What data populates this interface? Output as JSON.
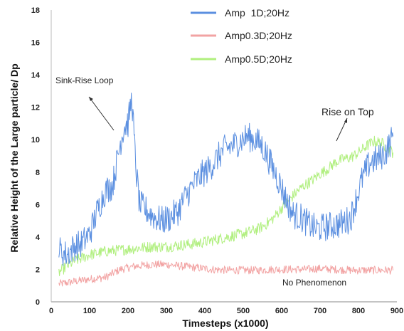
{
  "chart_data": {
    "type": "line",
    "xlabel": "Timesteps (x1000)",
    "ylabel": "Relative Height of the Large particle/ Dp",
    "xlim": [
      0,
      900
    ],
    "ylim": [
      0,
      18
    ],
    "x_ticks": [
      "0",
      "100",
      "200",
      "300",
      "400",
      "500",
      "600",
      "700",
      "800",
      "900"
    ],
    "y_ticks": [
      "0",
      "2",
      "4",
      "6",
      "8",
      "10",
      "12",
      "14",
      "16",
      "18"
    ],
    "grid": false,
    "legend_position": "top-right",
    "series": [
      {
        "name": "Amp  1D;20Hz",
        "color": "#5b8fe0",
        "noise": 0.9,
        "points": [
          [
            20,
            3.2
          ],
          [
            40,
            2.9
          ],
          [
            60,
            3.4
          ],
          [
            80,
            3.6
          ],
          [
            100,
            4.2
          ],
          [
            120,
            5.6
          ],
          [
            140,
            6.8
          ],
          [
            160,
            7.2
          ],
          [
            170,
            8.5
          ],
          [
            180,
            9.8
          ],
          [
            190,
            10.8
          ],
          [
            200,
            11.0
          ],
          [
            210,
            12.6
          ],
          [
            220,
            8.4
          ],
          [
            230,
            6.0
          ],
          [
            250,
            5.6
          ],
          [
            270,
            5.2
          ],
          [
            290,
            5.0
          ],
          [
            310,
            5.2
          ],
          [
            330,
            5.6
          ],
          [
            350,
            6.5
          ],
          [
            370,
            7.2
          ],
          [
            390,
            7.8
          ],
          [
            410,
            8.2
          ],
          [
            430,
            8.8
          ],
          [
            450,
            9.4
          ],
          [
            470,
            9.6
          ],
          [
            490,
            9.9
          ],
          [
            510,
            10.2
          ],
          [
            530,
            10.0
          ],
          [
            550,
            9.6
          ],
          [
            570,
            8.6
          ],
          [
            590,
            7.6
          ],
          [
            610,
            6.4
          ],
          [
            630,
            5.4
          ],
          [
            650,
            5.2
          ],
          [
            670,
            4.8
          ],
          [
            690,
            4.5
          ],
          [
            710,
            4.6
          ],
          [
            730,
            4.7
          ],
          [
            750,
            4.8
          ],
          [
            770,
            5.0
          ],
          [
            780,
            5.2
          ],
          [
            790,
            6.0
          ],
          [
            810,
            7.6
          ],
          [
            830,
            8.6
          ],
          [
            850,
            8.8
          ],
          [
            870,
            9.2
          ],
          [
            890,
            10.2
          ]
        ]
      },
      {
        "name": "Amp0.3D;20Hz",
        "color": "#f2a3a3",
        "noise": 0.25,
        "points": [
          [
            20,
            1.1
          ],
          [
            60,
            1.25
          ],
          [
            100,
            1.4
          ],
          [
            140,
            1.5
          ],
          [
            180,
            2.0
          ],
          [
            220,
            2.2
          ],
          [
            260,
            2.3
          ],
          [
            300,
            2.3
          ],
          [
            340,
            2.2
          ],
          [
            380,
            2.1
          ],
          [
            420,
            2.0
          ],
          [
            460,
            1.95
          ],
          [
            500,
            1.95
          ],
          [
            540,
            1.95
          ],
          [
            580,
            2.0
          ],
          [
            620,
            2.0
          ],
          [
            660,
            2.0
          ],
          [
            700,
            2.05
          ],
          [
            740,
            2.0
          ],
          [
            780,
            1.95
          ],
          [
            820,
            1.95
          ],
          [
            860,
            1.95
          ],
          [
            890,
            1.95
          ]
        ]
      },
      {
        "name": "Amp0.5D;20Hz",
        "color": "#b0ef7e",
        "noise": 0.35,
        "points": [
          [
            20,
            1.8
          ],
          [
            40,
            2.2
          ],
          [
            60,
            2.5
          ],
          [
            80,
            2.7
          ],
          [
            100,
            2.9
          ],
          [
            140,
            3.1
          ],
          [
            180,
            3.2
          ],
          [
            220,
            3.3
          ],
          [
            260,
            3.4
          ],
          [
            300,
            3.4
          ],
          [
            340,
            3.5
          ],
          [
            380,
            3.6
          ],
          [
            420,
            3.8
          ],
          [
            460,
            4.0
          ],
          [
            500,
            4.2
          ],
          [
            540,
            4.5
          ],
          [
            560,
            4.8
          ],
          [
            580,
            5.2
          ],
          [
            600,
            5.8
          ],
          [
            620,
            6.3
          ],
          [
            640,
            6.8
          ],
          [
            660,
            7.2
          ],
          [
            680,
            7.5
          ],
          [
            700,
            7.9
          ],
          [
            720,
            8.2
          ],
          [
            740,
            8.6
          ],
          [
            760,
            8.8
          ],
          [
            780,
            8.9
          ],
          [
            800,
            9.2
          ],
          [
            820,
            9.6
          ],
          [
            840,
            9.9
          ],
          [
            860,
            9.8
          ],
          [
            880,
            9.4
          ],
          [
            890,
            9.2
          ]
        ]
      }
    ],
    "annotations": [
      {
        "text": "Sink-Rise Loop"
      },
      {
        "text": "Rise on Top"
      },
      {
        "text": "No Phenomenon"
      }
    ]
  }
}
